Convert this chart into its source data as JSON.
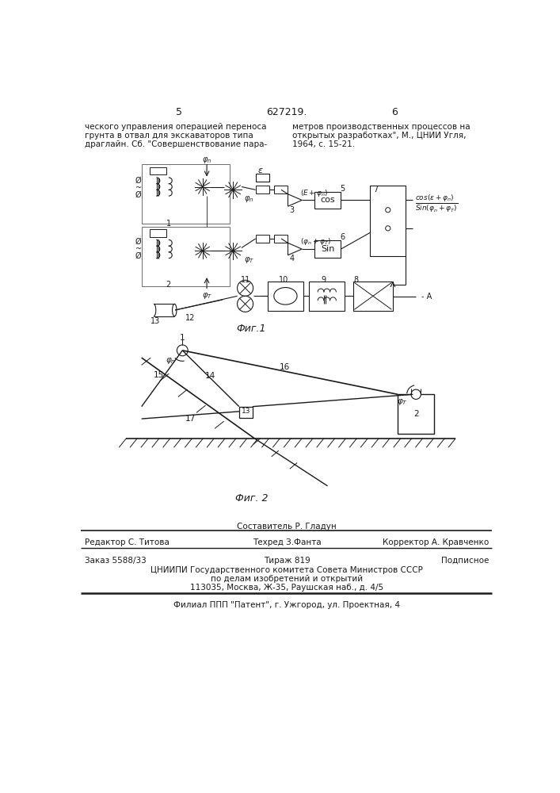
{
  "page_num_left": "5",
  "page_num_center": "627219.",
  "page_num_right": "6",
  "top_text_left": [
    "ческого управления операцией переноса",
    "грунта в отвал для экскаваторов типа",
    "драглайн. Сб. \"Совершенствование пара-"
  ],
  "top_text_right": [
    "метров производственных процессов на",
    "открытых разработках\", М., ЦНИИ Угля,",
    "1964, с. 15-21."
  ],
  "fig1_label": "Фиг.1",
  "fig2_label": "Фиг. 2",
  "bottom_composer": "Составитель Р. Гладун",
  "bottom_editor": "Редактор С. Титова",
  "bottom_tech": "Техред З.Фанта",
  "bottom_corr": "Корректор А. Кравченко",
  "bottom_order": "Заказ 5588/33",
  "bottom_circulation": "Тираж 819",
  "bottom_signed": "Подписное",
  "bottom_org": "ЦНИИПИ Государственного комитета Совета Министров СССР",
  "bottom_dept": "по делам изобретений и открытий",
  "bottom_addr": "113035, Москва, Ж-35, Раушская наб., д. 4/5",
  "bottom_branch": "Филиал ППП \"Патент\", г. Ужгород, ул. Проектная, 4",
  "bg_color": "#ffffff",
  "text_color": "#1a1a1a",
  "line_color": "#1a1a1a"
}
